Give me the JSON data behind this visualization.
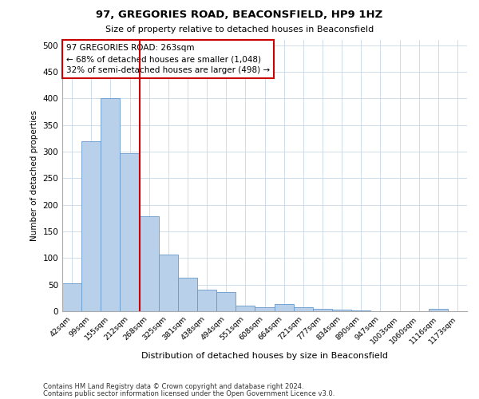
{
  "title1": "97, GREGORIES ROAD, BEACONSFIELD, HP9 1HZ",
  "title2": "Size of property relative to detached houses in Beaconsfield",
  "xlabel": "Distribution of detached houses by size in Beaconsfield",
  "ylabel": "Number of detached properties",
  "footnote1": "Contains HM Land Registry data © Crown copyright and database right 2024.",
  "footnote2": "Contains public sector information licensed under the Open Government Licence v3.0.",
  "annotation_line1": "97 GREGORIES ROAD: 263sqm",
  "annotation_line2": "← 68% of detached houses are smaller (1,048)",
  "annotation_line3": "32% of semi-detached houses are larger (498) →",
  "bar_labels": [
    "42sqm",
    "99sqm",
    "155sqm",
    "212sqm",
    "268sqm",
    "325sqm",
    "381sqm",
    "438sqm",
    "494sqm",
    "551sqm",
    "608sqm",
    "664sqm",
    "721sqm",
    "777sqm",
    "834sqm",
    "890sqm",
    "947sqm",
    "1003sqm",
    "1060sqm",
    "1116sqm",
    "1173sqm"
  ],
  "bar_values": [
    53,
    320,
    400,
    297,
    178,
    107,
    63,
    40,
    36,
    11,
    8,
    13,
    7,
    5,
    3,
    2,
    0,
    0,
    0,
    4,
    0
  ],
  "bar_color": "#b8d0ea",
  "bar_edge_color": "#6699cc",
  "vline_color": "#cc0000",
  "vline_x": 4.0,
  "annotation_box_color": "#cc0000",
  "ylim": [
    0,
    510
  ],
  "yticks": [
    0,
    50,
    100,
    150,
    200,
    250,
    300,
    350,
    400,
    450,
    500
  ],
  "grid_color": "#c8d8e8"
}
